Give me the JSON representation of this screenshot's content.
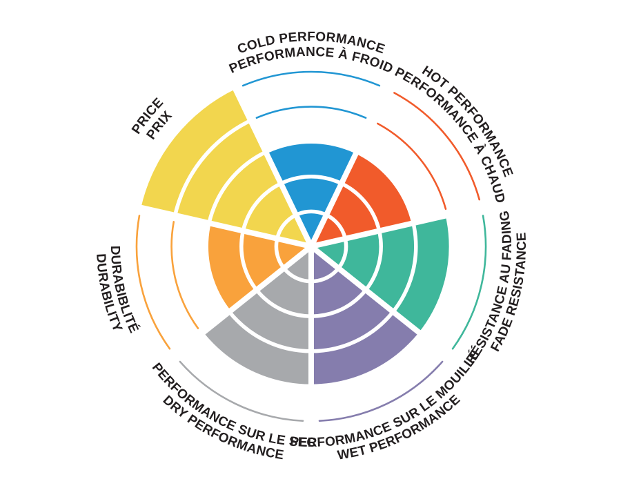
{
  "chart_data": {
    "type": "polar-bar",
    "title": "",
    "max_level": 5,
    "ring_count": 5,
    "background_color": "#FFFFFF",
    "text_color": "#231F20",
    "separator_color": "#FFFFFF",
    "legend_position": "around-wheel",
    "grid": "white concentric rings over filled sectors; unfilled levels shown as thin colored arcs",
    "sectors": [
      {
        "id": "cold",
        "label_en": "COLD PERFORMANCE",
        "label_fr": "PERFORMANCE À FROID",
        "value": 3,
        "color": "#2196D3",
        "center_angle_deg": 0,
        "label_style": "top"
      },
      {
        "id": "hot",
        "label_en": "HOT PERFORMANCE",
        "label_fr": "PERFORMANCE À CHAUD",
        "value": 3,
        "color": "#F15B2B",
        "center_angle_deg": 51.43,
        "label_style": "top"
      },
      {
        "id": "fade",
        "label_en": "FADE RESISTANCE",
        "label_fr": "RÉSISTANCE AU FADING",
        "value": 4,
        "color": "#3FB79B",
        "center_angle_deg": 102.86,
        "label_style": "bottom"
      },
      {
        "id": "wet",
        "label_en": "WET PERFORMANCE",
        "label_fr": "PERFORMANCE SUR LE MOUILLÉ",
        "value": 4,
        "color": "#857DAD",
        "center_angle_deg": 154.29,
        "label_style": "bottom"
      },
      {
        "id": "dry",
        "label_en": "DRY PERFORMANCE",
        "label_fr": "PERFORMANCE SUR LE SEC",
        "value": 4,
        "color": "#A7A9AC",
        "center_angle_deg": 205.71,
        "label_style": "bottom"
      },
      {
        "id": "durability",
        "label_en": "DURABILITY",
        "label_fr": "DURABIBLITÉ",
        "value": 3,
        "color": "#F9A23C",
        "center_angle_deg": 257.14,
        "label_style": "bottom"
      },
      {
        "id": "price",
        "label_en": "PRICE",
        "label_fr": "PRIX",
        "value": 5,
        "color": "#F2D64E",
        "center_angle_deg": 308.57,
        "label_style": "top"
      }
    ]
  }
}
